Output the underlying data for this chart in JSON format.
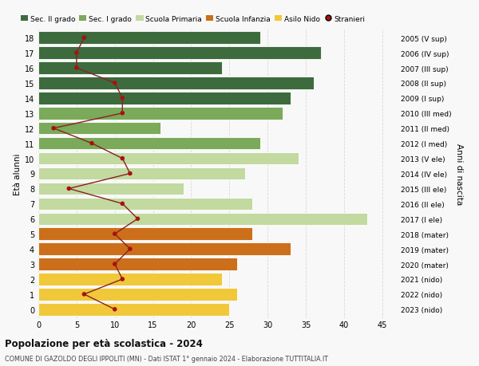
{
  "ages": [
    18,
    17,
    16,
    15,
    14,
    13,
    12,
    11,
    10,
    9,
    8,
    7,
    6,
    5,
    4,
    3,
    2,
    1,
    0
  ],
  "bar_values": [
    29,
    37,
    24,
    36,
    33,
    32,
    16,
    29,
    34,
    27,
    19,
    28,
    43,
    28,
    33,
    26,
    24,
    26,
    25
  ],
  "stranieri": [
    6,
    5,
    5,
    10,
    11,
    11,
    2,
    7,
    11,
    12,
    4,
    11,
    13,
    10,
    12,
    10,
    11,
    6,
    10
  ],
  "right_labels": [
    "2005 (V sup)",
    "2006 (IV sup)",
    "2007 (III sup)",
    "2008 (II sup)",
    "2009 (I sup)",
    "2010 (III med)",
    "2011 (II med)",
    "2012 (I med)",
    "2013 (V ele)",
    "2014 (IV ele)",
    "2015 (III ele)",
    "2016 (II ele)",
    "2017 (I ele)",
    "2018 (mater)",
    "2019 (mater)",
    "2020 (mater)",
    "2021 (nido)",
    "2022 (nido)",
    "2023 (nido)"
  ],
  "bar_colors": [
    "#3d6b3d",
    "#3d6b3d",
    "#3d6b3d",
    "#3d6b3d",
    "#3d6b3d",
    "#7aaa5a",
    "#7aaa5a",
    "#7aaa5a",
    "#c2d9a0",
    "#c2d9a0",
    "#c2d9a0",
    "#c2d9a0",
    "#c2d9a0",
    "#cc6f1a",
    "#cc6f1a",
    "#cc6f1a",
    "#f0c83a",
    "#f0c83a",
    "#f0c83a"
  ],
  "legend_labels": [
    "Sec. II grado",
    "Sec. I grado",
    "Scuola Primaria",
    "Scuola Infanzia",
    "Asilo Nido",
    "Stranieri"
  ],
  "legend_colors": [
    "#3d6b3d",
    "#7aaa5a",
    "#c2d9a0",
    "#cc6f1a",
    "#f0c83a",
    "#aa1010"
  ],
  "stranieri_color": "#aa1010",
  "stranieri_line_color": "#882222",
  "ylabel_left": "Età alunni",
  "ylabel_right": "Anni di nascita",
  "title": "Popolazione per età scolastica - 2024",
  "subtitle": "COMUNE DI GAZOLDO DEGLI IPPOLITI (MN) - Dati ISTAT 1° gennaio 2024 - Elaborazione TUTTITALIA.IT",
  "xlim": [
    0,
    47
  ],
  "xticks": [
    0,
    5,
    10,
    15,
    20,
    25,
    30,
    35,
    40,
    45
  ],
  "bg_color": "#f8f8f8",
  "grid_color": "#d8d8d8"
}
